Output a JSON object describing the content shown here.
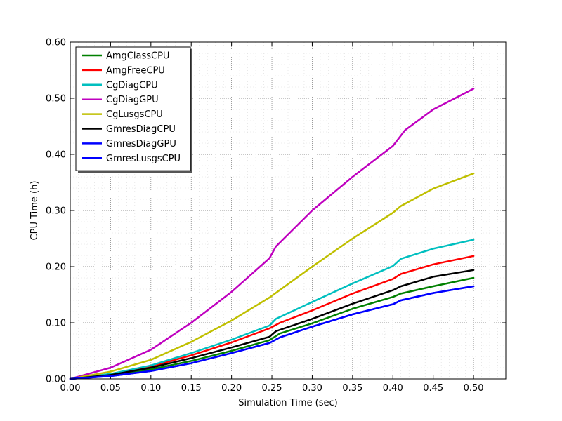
{
  "chart_data": {
    "type": "line",
    "title": "",
    "xlabel": "Simulation Time (sec)",
    "ylabel": "CPU Time (h)",
    "xlim": [
      0.0,
      0.54
    ],
    "ylim": [
      0.0,
      0.6
    ],
    "xticks": [
      0.0,
      0.05,
      0.1,
      0.15,
      0.2,
      0.25,
      0.3,
      0.35,
      0.4,
      0.45,
      0.5
    ],
    "yticks": [
      0.0,
      0.1,
      0.2,
      0.3,
      0.4,
      0.5,
      0.6
    ],
    "xtick_labels": [
      "0.00",
      "0.05",
      "0.10",
      "0.15",
      "0.20",
      "0.25",
      "0.30",
      "0.35",
      "0.40",
      "0.45",
      "0.50"
    ],
    "ytick_labels": [
      "0.00",
      "0.10",
      "0.20",
      "0.30",
      "0.40",
      "0.50",
      "0.60"
    ],
    "grid": true,
    "legend_position": "top-left",
    "series": [
      {
        "name": "AmgClassCPU",
        "color": "#008000",
        "x": [
          0.0,
          0.05,
          0.1,
          0.15,
          0.2,
          0.247,
          0.26,
          0.3,
          0.35,
          0.4,
          0.41,
          0.45,
          0.5
        ],
        "y": [
          0.0,
          0.006,
          0.017,
          0.032,
          0.05,
          0.069,
          0.081,
          0.099,
          0.125,
          0.146,
          0.152,
          0.165,
          0.18
        ]
      },
      {
        "name": "AmgFreeCPU",
        "color": "#ff0000",
        "x": [
          0.0,
          0.05,
          0.1,
          0.15,
          0.2,
          0.247,
          0.26,
          0.3,
          0.35,
          0.4,
          0.41,
          0.45,
          0.5
        ],
        "y": [
          0.0,
          0.008,
          0.022,
          0.042,
          0.065,
          0.09,
          0.1,
          0.122,
          0.152,
          0.178,
          0.187,
          0.204,
          0.219
        ]
      },
      {
        "name": "CgDiagCPU",
        "color": "#00bfbf",
        "x": [
          0.0,
          0.05,
          0.1,
          0.15,
          0.2,
          0.247,
          0.255,
          0.3,
          0.35,
          0.4,
          0.41,
          0.45,
          0.5
        ],
        "y": [
          0.0,
          0.009,
          0.024,
          0.046,
          0.07,
          0.095,
          0.107,
          0.137,
          0.17,
          0.201,
          0.214,
          0.232,
          0.248
        ]
      },
      {
        "name": "CgDiagGPU",
        "color": "#bf00bf",
        "x": [
          0.0,
          0.05,
          0.1,
          0.15,
          0.2,
          0.247,
          0.255,
          0.3,
          0.35,
          0.4,
          0.415,
          0.45,
          0.5
        ],
        "y": [
          0.0,
          0.02,
          0.052,
          0.1,
          0.155,
          0.215,
          0.236,
          0.3,
          0.36,
          0.415,
          0.443,
          0.48,
          0.517
        ]
      },
      {
        "name": "CgLusgsCPU",
        "color": "#bfbf00",
        "x": [
          0.0,
          0.05,
          0.1,
          0.15,
          0.2,
          0.247,
          0.3,
          0.35,
          0.4,
          0.41,
          0.45,
          0.5
        ],
        "y": [
          0.0,
          0.013,
          0.034,
          0.066,
          0.104,
          0.145,
          0.2,
          0.25,
          0.296,
          0.308,
          0.339,
          0.366
        ]
      },
      {
        "name": "GmresDiagCPU",
        "color": "#000000",
        "x": [
          0.0,
          0.05,
          0.1,
          0.15,
          0.2,
          0.247,
          0.255,
          0.3,
          0.35,
          0.4,
          0.41,
          0.45,
          0.5
        ],
        "y": [
          0.0,
          0.007,
          0.02,
          0.037,
          0.056,
          0.075,
          0.085,
          0.107,
          0.134,
          0.158,
          0.165,
          0.182,
          0.194
        ]
      },
      {
        "name": "GmresDiagGPU",
        "color": "#0000ff",
        "x": [
          0.0,
          0.05,
          0.1,
          0.15,
          0.2,
          0.247,
          0.26,
          0.3,
          0.35,
          0.4,
          0.41,
          0.45,
          0.5
        ],
        "y": [
          0.0,
          0.005,
          0.014,
          0.028,
          0.046,
          0.064,
          0.074,
          0.093,
          0.115,
          0.133,
          0.14,
          0.153,
          0.165
        ]
      },
      {
        "name": "GmresLusgsCPU",
        "color": "#0000ff",
        "x": [
          0.0,
          0.05,
          0.1,
          0.15,
          0.2,
          0.247,
          0.26,
          0.3,
          0.35,
          0.4,
          0.41,
          0.45,
          0.5
        ],
        "y": [
          0.0,
          0.005,
          0.014,
          0.028,
          0.046,
          0.064,
          0.074,
          0.093,
          0.115,
          0.133,
          0.14,
          0.153,
          0.165
        ]
      }
    ]
  }
}
